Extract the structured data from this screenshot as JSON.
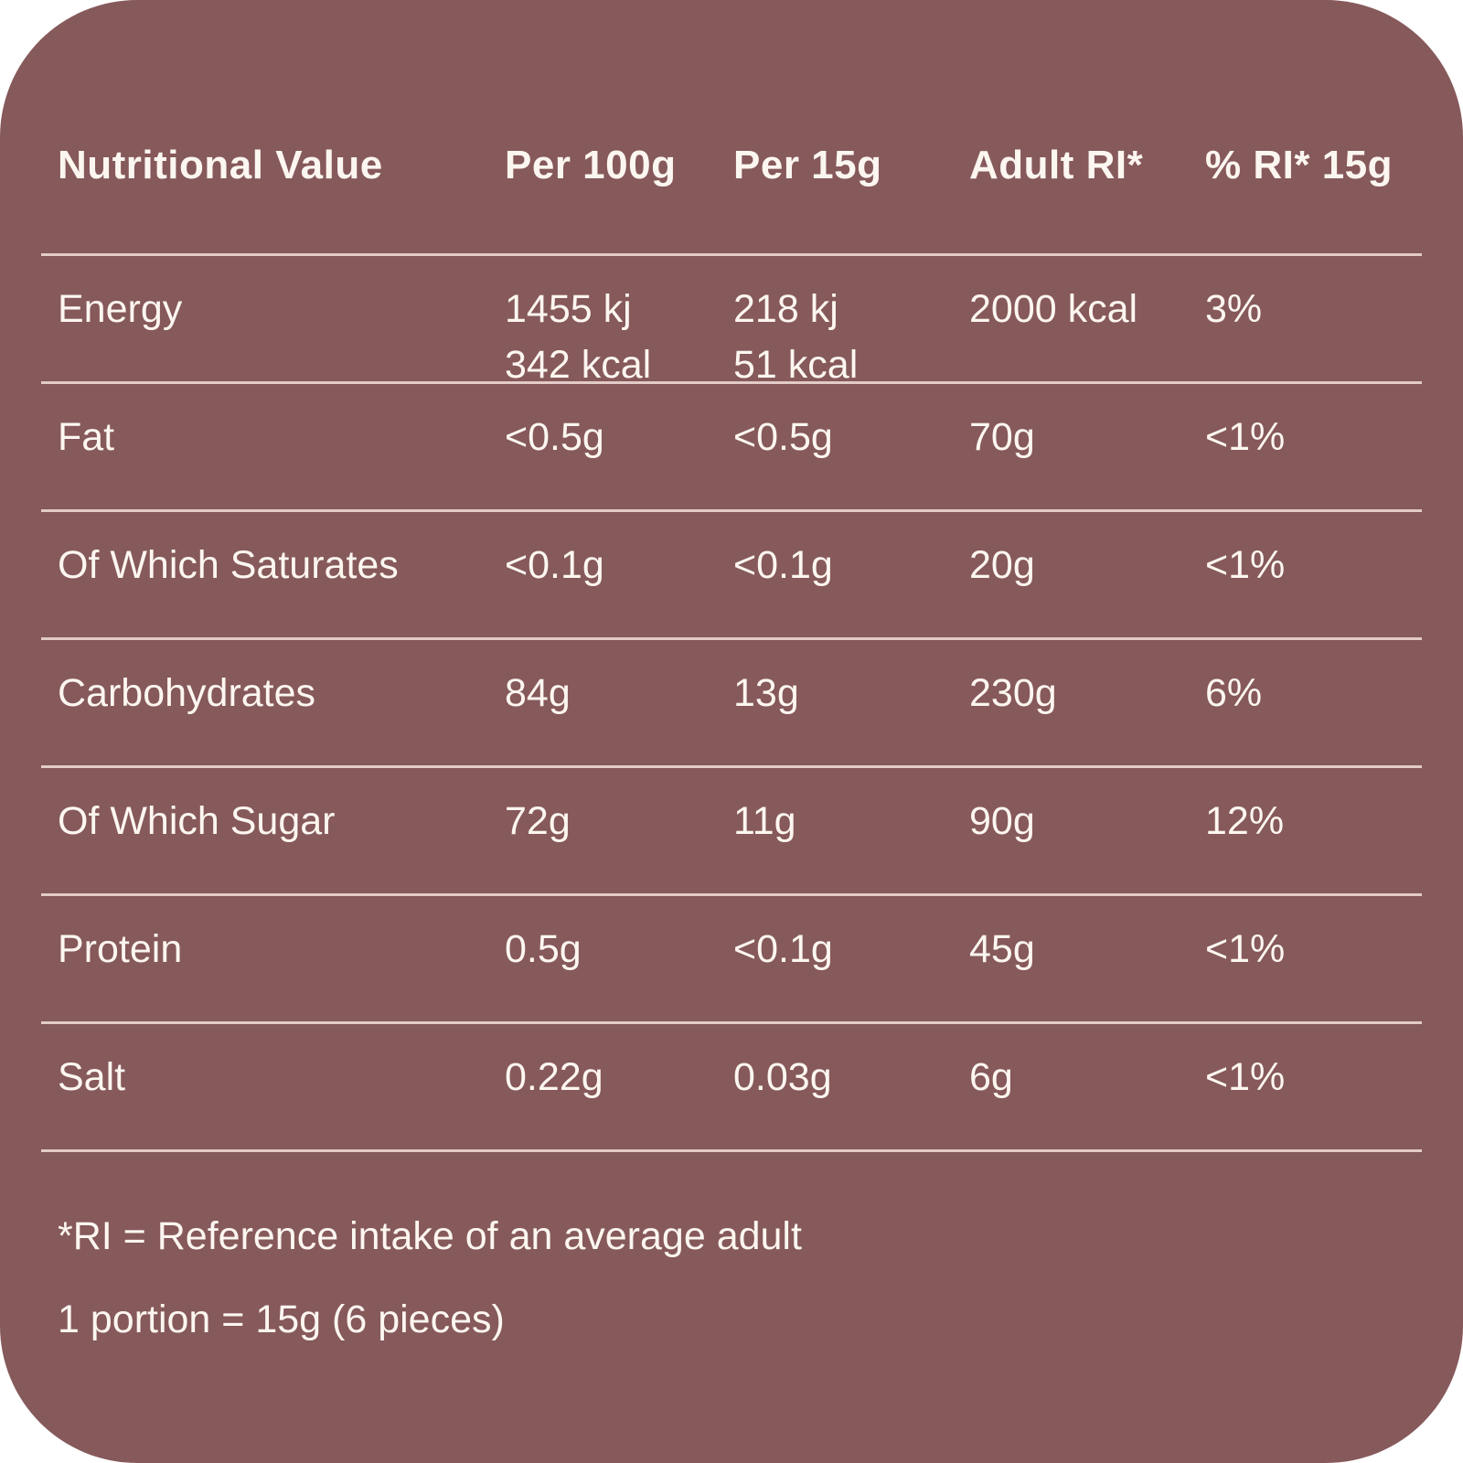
{
  "card": {
    "background_color": "#86595B",
    "divider_color": "#E3CCC8",
    "text_color": "#FCF6F0",
    "corner_background": "#FFFFFF"
  },
  "table": {
    "headers": [
      "Nutritional Value",
      "Per 100g",
      "Per 15g",
      "Adult RI*",
      "% RI* 15g"
    ],
    "rows": [
      {
        "label": "Energy",
        "per_100g": "1455 kj\n342 kcal",
        "per_15g": "218 kj\n51 kcal",
        "adult_ri": "2000 kcal",
        "pct_ri_15g": "3%"
      },
      {
        "label": "Fat",
        "per_100g": "<0.5g",
        "per_15g": "<0.5g",
        "adult_ri": "70g",
        "pct_ri_15g": "<1%"
      },
      {
        "label": "Of Which Saturates",
        "per_100g": "<0.1g",
        "per_15g": "<0.1g",
        "adult_ri": "20g",
        "pct_ri_15g": "<1%"
      },
      {
        "label": "Carbohydrates",
        "per_100g": "84g",
        "per_15g": "13g",
        "adult_ri": "230g",
        "pct_ri_15g": "6%"
      },
      {
        "label": "Of Which Sugar",
        "per_100g": "72g",
        "per_15g": "11g",
        "adult_ri": "90g",
        "pct_ri_15g": "12%"
      },
      {
        "label": "Protein",
        "per_100g": "0.5g",
        "per_15g": "<0.1g",
        "adult_ri": "45g",
        "pct_ri_15g": "<1%"
      },
      {
        "label": "Salt",
        "per_100g": "0.22g",
        "per_15g": "0.03g",
        "adult_ri": "6g",
        "pct_ri_15g": "<1%"
      }
    ]
  },
  "footnotes": {
    "line1": "*RI = Reference intake of an average adult",
    "line2": "1 portion = 15g (6 pieces)"
  }
}
